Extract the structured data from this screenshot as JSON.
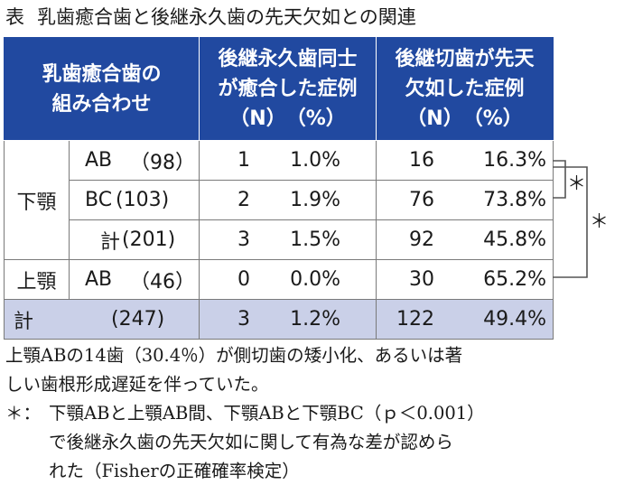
{
  "title": {
    "label": "表",
    "text": "乳歯癒合歯と後継永久歯の先天欠如との関連"
  },
  "header": {
    "col1": [
      "乳歯癒合歯の",
      "組み合わせ"
    ],
    "col3": [
      "後継永久歯同士",
      "が癒合した症例",
      "（N）　（%）"
    ],
    "col4": [
      "後継切歯が先天",
      "欠如した症例",
      "（N）　（%）"
    ]
  },
  "groups": {
    "lower": "下顎",
    "upper": "上顎"
  },
  "rows": [
    {
      "code": "AB",
      "n": "（98）",
      "fused_n": "1",
      "fused_pct": "1.0%",
      "absent_n": "16",
      "absent_pct": "16.3%"
    },
    {
      "code": "BC",
      "n": "(103)",
      "fused_n": "2",
      "fused_pct": "1.9%",
      "absent_n": "76",
      "absent_pct": "73.8%"
    },
    {
      "code": "計",
      "n": "(201)",
      "fused_n": "3",
      "fused_pct": "1.5%",
      "absent_n": "92",
      "absent_pct": "45.8%"
    },
    {
      "code": "AB",
      "n": "（46）",
      "fused_n": "0",
      "fused_pct": "0.0%",
      "absent_n": "30",
      "absent_pct": "65.2%"
    }
  ],
  "total": {
    "label": "計",
    "n": "(247)",
    "fused_n": "3",
    "fused_pct": "1.2%",
    "absent_n": "122",
    "absent_pct": "49.4%"
  },
  "significance": {
    "inner": "＊",
    "outer": "＊"
  },
  "notes": {
    "line1": "上顎ABの14歯（30.4％）が側切歯の矮小化、あるいは著",
    "line2": "しい歯根形成遅延を伴っていた。",
    "footnote_mark": "＊：",
    "footnote_line1": "下顎ABと上顎AB間、下顎ABと下顎BC（ｐ＜0.001）",
    "footnote_line2": "で後継永久歯の先天欠如に関して有為な差が認めら",
    "footnote_line3": "れた（Fisherの正確確率検定）"
  },
  "colors": {
    "header_bg": "#2149a0",
    "total_bg": "#cad0e8"
  }
}
